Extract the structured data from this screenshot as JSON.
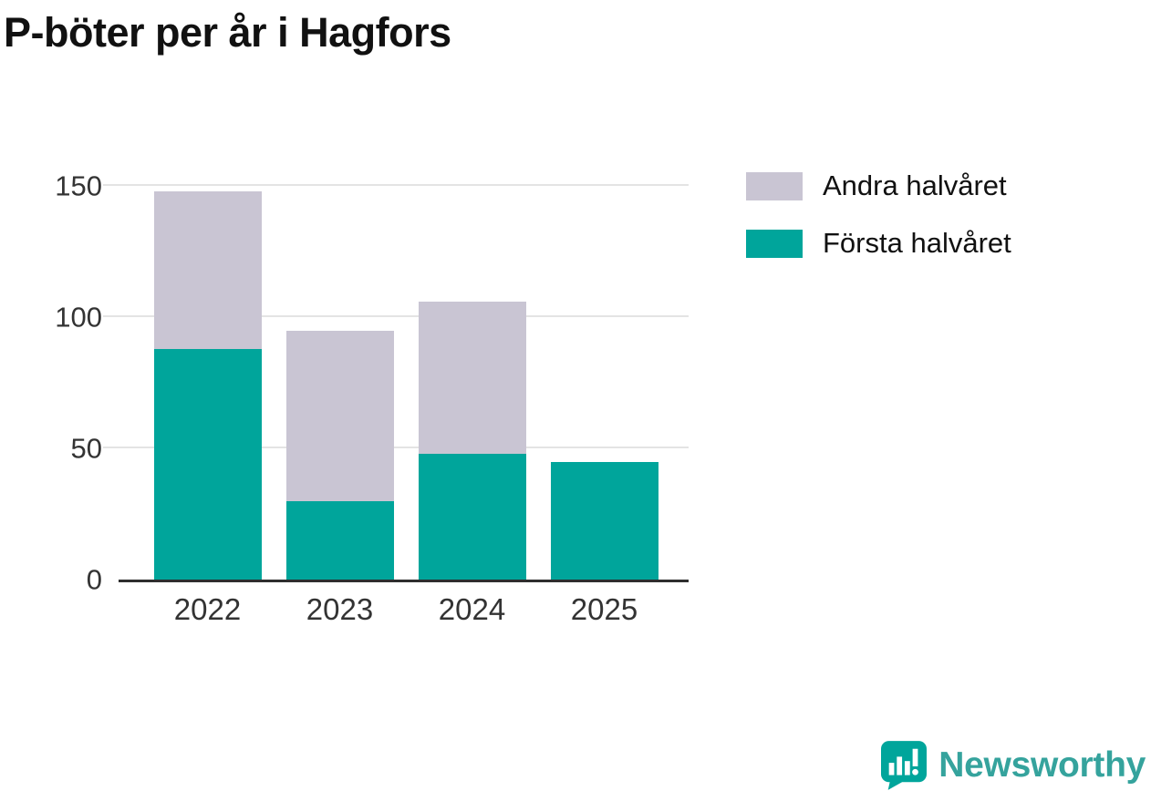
{
  "title": "P-böter per år i Hagfors",
  "chart_data": {
    "type": "bar",
    "stacked": true,
    "title": "P-böter per år i Hagfors",
    "categories": [
      "2022",
      "2023",
      "2024",
      "2025"
    ],
    "series": [
      {
        "name": "Första halvåret",
        "color": "#00a59b",
        "values": [
          88,
          30,
          48,
          45
        ]
      },
      {
        "name": "Andra halvåret",
        "color": "#c9c5d3",
        "values": [
          60,
          65,
          58,
          0
        ]
      }
    ],
    "totals": [
      148,
      95,
      106,
      45
    ],
    "xlabel": "",
    "ylabel": "",
    "yticks": [
      0,
      50,
      100,
      150
    ],
    "ylim": [
      0,
      155
    ],
    "grid": true,
    "legend_position": "top-right",
    "legend": [
      "Andra halvåret",
      "Första halvåret"
    ]
  },
  "colors": {
    "accent_teal": "#00a59b",
    "secondary_gray": "#c9c5d3",
    "gridline": "#e4e4e4",
    "axis": "#2e2e2e",
    "text": "#333333"
  },
  "branding": {
    "logo_text": "Newsworthy",
    "logo_icon": "newsworthy-logo-icon",
    "logo_text_color": "#35a39d",
    "logo_icon_color": "#00a59b"
  }
}
